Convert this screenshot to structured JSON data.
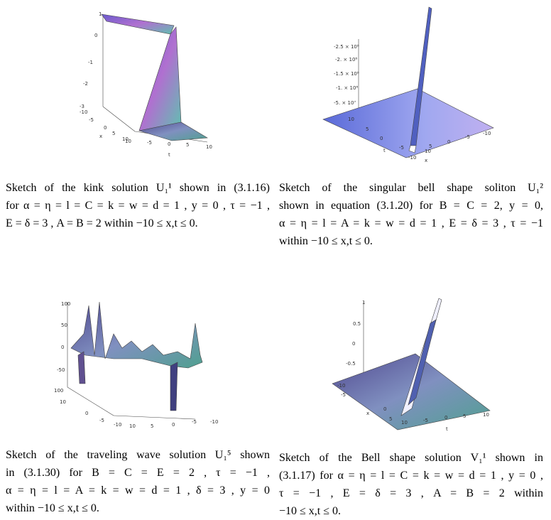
{
  "figures": [
    {
      "ticks": [
        "1",
        "0",
        "-1",
        "-2",
        "-3",
        "-10",
        "-5",
        "x",
        "0",
        "5",
        "10",
        "10",
        "-5",
        "0",
        "5",
        "10",
        "t"
      ],
      "caption": [
        "Sketch of the kink solution U₁¹ shown in (3.1.16)",
        "for α = η = l = C = k = w = d = 1 , y = 0 , τ = −1 ,",
        "E = δ = 3 , A = B = 2 within −10 ≤ x,t ≤ 0."
      ]
    },
    {
      "ticks": [
        "-2.5 × 10⁸",
        "-2. × 10⁸",
        "-1.5 × 10⁸",
        "-1. × 10⁸",
        "-5. × 10⁷",
        "10",
        "5",
        "0",
        "t",
        "-5",
        "-10",
        "10",
        "5",
        "0",
        "-5",
        "-10",
        "x"
      ],
      "caption": [
        "Sketch of the singular bell shape soliton U₁²",
        "shown in equation (3.1.20) for B = C = 2, y = 0,",
        "α = η = l = A = k = w = d = 1 , E = δ = 3 , τ = −1",
        "within −10 ≤ x,t ≤ 0."
      ]
    },
    {
      "ticks": [
        "100",
        "50",
        "0",
        "-50",
        "100",
        "10",
        "0",
        "-5",
        "-10",
        "10",
        "5",
        "0",
        "-5",
        "-10"
      ],
      "caption": [
        "Sketch of the traveling wave solution U₁⁵ shown",
        "in (3.1.30) for B = C = E = 2 , τ = −1 ,",
        "α = η = l = A = k = w = d = 1 , δ = 3 , y = 0",
        "within −10 ≤ x,t ≤ 0."
      ]
    },
    {
      "ticks": [
        "1",
        "0.5",
        "0",
        "-0.5",
        "-10",
        "-5",
        "x",
        "0",
        "5",
        "10",
        "-5",
        "0",
        "5",
        "10",
        "t"
      ],
      "caption": [
        "Sketch of the Bell shape solution V₁¹ shown in",
        "(3.1.17) for α = η = l = C = k = w = d = 1 , y = 0 ,",
        "τ = −1 , E = δ = 3 , A = B = 2 within",
        "−10 ≤ x,t ≤ 0."
      ]
    }
  ]
}
